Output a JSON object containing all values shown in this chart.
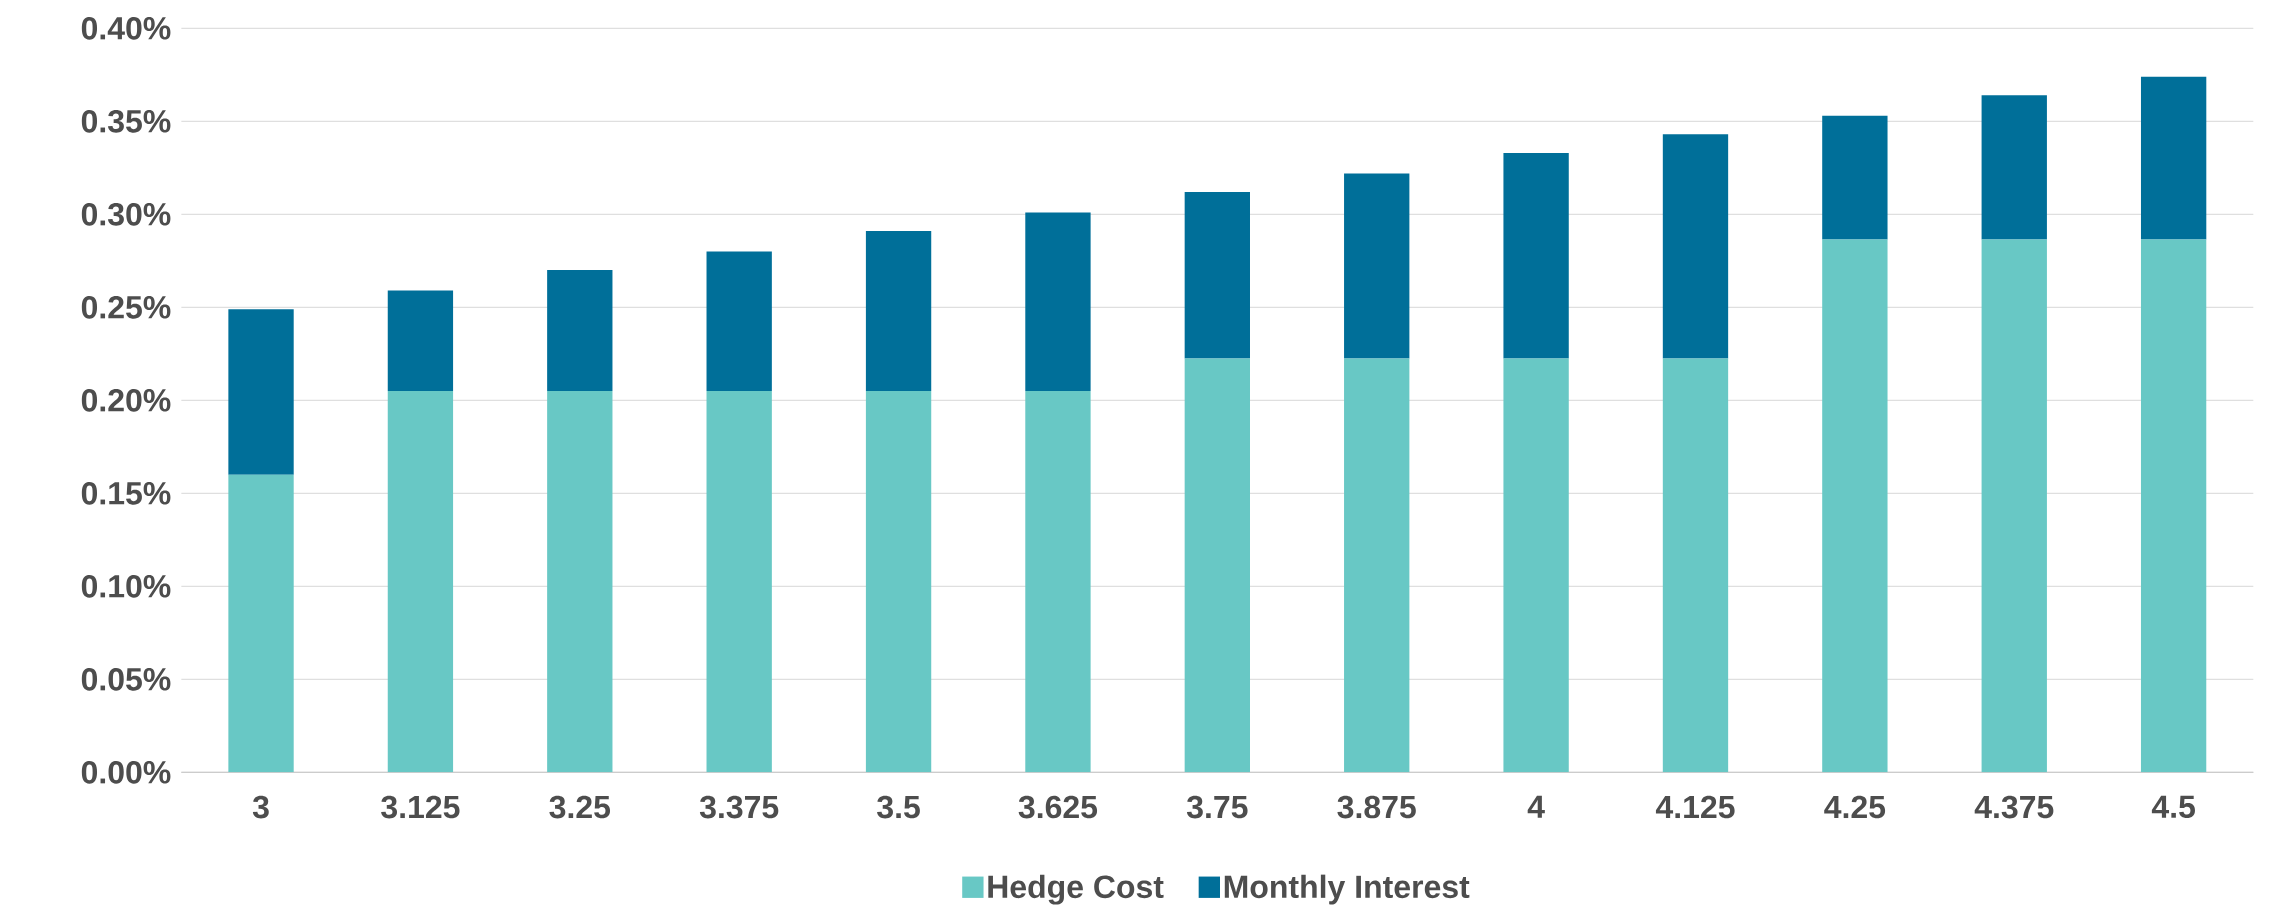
{
  "chart_data": {
    "type": "bar",
    "stacked": true,
    "categories": [
      "3",
      "3.125",
      "3.25",
      "3.375",
      "3.5",
      "3.625",
      "3.75",
      "3.875",
      "4",
      "4.125",
      "4.25",
      "4.375",
      "4.5"
    ],
    "series": [
      {
        "name": "Hedge Cost",
        "color": "#68c8c5",
        "values": [
          0.16,
          0.205,
          0.205,
          0.205,
          0.205,
          0.205,
          0.2225,
          0.2225,
          0.2225,
          0.2225,
          0.2865,
          0.2865,
          0.2865
        ]
      },
      {
        "name": "Monthly Interest",
        "color": "#006f99",
        "values": [
          0.089,
          0.054,
          0.065,
          0.075,
          0.086,
          0.096,
          0.0895,
          0.0995,
          0.1105,
          0.1205,
          0.0665,
          0.0775,
          0.0875
        ]
      }
    ],
    "ylim": [
      0,
      0.4
    ],
    "yticks": [
      {
        "value": 0,
        "label": "0.00%"
      },
      {
        "value": 0.05,
        "label": "0.05%"
      },
      {
        "value": 0.1,
        "label": "0.10%"
      },
      {
        "value": 0.15,
        "label": "0.15%"
      },
      {
        "value": 0.2,
        "label": "0.20%"
      },
      {
        "value": 0.25,
        "label": "0.25%"
      },
      {
        "value": 0.3,
        "label": "0.30%"
      },
      {
        "value": 0.35,
        "label": "0.35%"
      },
      {
        "value": 0.4,
        "label": "0.40%"
      }
    ],
    "grid": "y",
    "legend": "bottom"
  }
}
